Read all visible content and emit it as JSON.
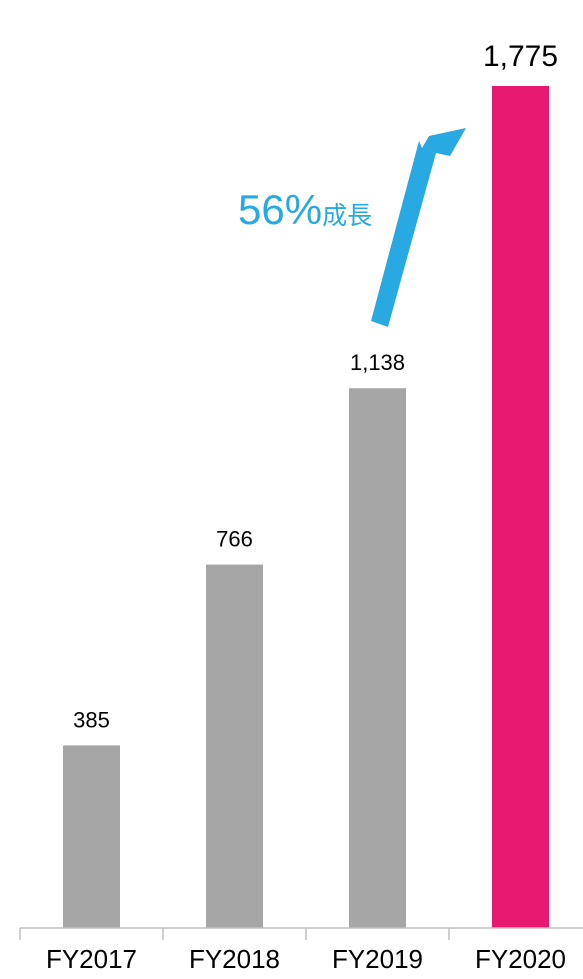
{
  "chart_data": {
    "type": "bar",
    "categories": [
      "FY2017",
      "FY2018",
      "FY2019",
      "FY2020"
    ],
    "values": [
      385,
      766,
      1138,
      1775
    ],
    "value_labels": [
      "385",
      "766",
      "1,138",
      "1,775"
    ],
    "highlight_index": 3,
    "ylim": [
      0,
      1775
    ],
    "grid": false,
    "bar_color": "#a6a6a6",
    "highlight_color": "#e6186f",
    "annotation": {
      "number": "56%",
      "suffix": "成長",
      "color": "#29a9e1"
    }
  }
}
